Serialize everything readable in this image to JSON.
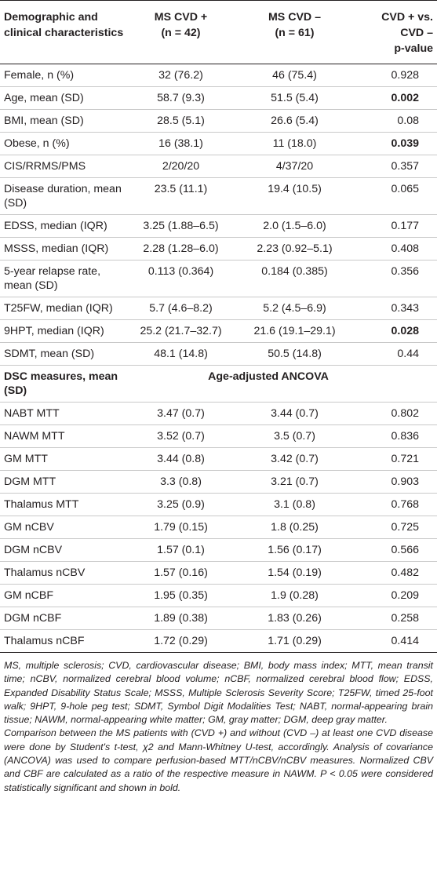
{
  "header": {
    "col1": "Demographic and clinical characteristics",
    "col2_line1": "MS CVD +",
    "col2_line2": "(n = 42)",
    "col3_line1": "MS CVD –",
    "col3_line2": "(n = 61)",
    "col4_line1": "CVD + vs.",
    "col4_line2": "CVD –",
    "col4_line3": "p-value"
  },
  "demographic_rows": [
    {
      "label": "Female, n (%)",
      "cvd_pos": "32 (76.2)",
      "cvd_neg": "46 (75.4)",
      "p": "0.928",
      "bold": false
    },
    {
      "label": "Age, mean (SD)",
      "cvd_pos": "58.7 (9.3)",
      "cvd_neg": "51.5 (5.4)",
      "p": "0.002",
      "bold": true
    },
    {
      "label": "BMI, mean (SD)",
      "cvd_pos": "28.5 (5.1)",
      "cvd_neg": "26.6 (5.4)",
      "p": "0.08",
      "bold": false
    },
    {
      "label": "Obese, n (%)",
      "cvd_pos": "16 (38.1)",
      "cvd_neg": "11 (18.0)",
      "p": "0.039",
      "bold": true
    },
    {
      "label": "CIS/RRMS/PMS",
      "cvd_pos": "2/20/20",
      "cvd_neg": "4/37/20",
      "p": "0.357",
      "bold": false
    },
    {
      "label": "Disease duration, mean (SD)",
      "cvd_pos": "23.5 (11.1)",
      "cvd_neg": "19.4 (10.5)",
      "p": "0.065",
      "bold": false
    },
    {
      "label": "EDSS, median (IQR)",
      "cvd_pos": "3.25 (1.88–6.5)",
      "cvd_neg": "2.0 (1.5–6.0)",
      "p": "0.177",
      "bold": false
    },
    {
      "label": "MSSS, median (IQR)",
      "cvd_pos": "2.28 (1.28–6.0)",
      "cvd_neg": "2.23 (0.92–5.1)",
      "p": "0.408",
      "bold": false
    },
    {
      "label": "5-year relapse rate, mean (SD)",
      "cvd_pos": "0.113 (0.364)",
      "cvd_neg": "0.184 (0.385)",
      "p": "0.356",
      "bold": false
    },
    {
      "label": "T25FW, median (IQR)",
      "cvd_pos": "5.7 (4.6–8.2)",
      "cvd_neg": "5.2 (4.5–6.9)",
      "p": "0.343",
      "bold": false
    },
    {
      "label": "9HPT, median (IQR)",
      "cvd_pos": "25.2 (21.7–32.7)",
      "cvd_neg": "21.6 (19.1–29.1)",
      "p": "0.028",
      "bold": true
    },
    {
      "label": "SDMT, mean (SD)",
      "cvd_pos": "48.1 (14.8)",
      "cvd_neg": "50.5 (14.8)",
      "p": "0.44",
      "bold": false
    }
  ],
  "dsc_section": {
    "label": "DSC measures, mean (SD)",
    "subheader": "Age-adjusted ANCOVA"
  },
  "dsc_rows": [
    {
      "label": "NABT MTT",
      "cvd_pos": "3.47 (0.7)",
      "cvd_neg": "3.44 (0.7)",
      "p": "0.802"
    },
    {
      "label": "NAWM MTT",
      "cvd_pos": "3.52 (0.7)",
      "cvd_neg": "3.5 (0.7)",
      "p": "0.836"
    },
    {
      "label": "GM MTT",
      "cvd_pos": "3.44 (0.8)",
      "cvd_neg": "3.42 (0.7)",
      "p": "0.721"
    },
    {
      "label": "DGM MTT",
      "cvd_pos": "3.3 (0.8)",
      "cvd_neg": "3.21 (0.7)",
      "p": "0.903"
    },
    {
      "label": "Thalamus MTT",
      "cvd_pos": "3.25 (0.9)",
      "cvd_neg": "3.1 (0.8)",
      "p": "0.768"
    },
    {
      "label": "GM nCBV",
      "cvd_pos": "1.79 (0.15)",
      "cvd_neg": "1.8 (0.25)",
      "p": "0.725"
    },
    {
      "label": "DGM nCBV",
      "cvd_pos": "1.57 (0.1)",
      "cvd_neg": "1.56 (0.17)",
      "p": "0.566"
    },
    {
      "label": "Thalamus nCBV",
      "cvd_pos": "1.57 (0.16)",
      "cvd_neg": "1.54 (0.19)",
      "p": "0.482"
    },
    {
      "label": "GM nCBF",
      "cvd_pos": "1.95 (0.35)",
      "cvd_neg": "1.9 (0.28)",
      "p": "0.209"
    },
    {
      "label": "DGM nCBF",
      "cvd_pos": "1.89 (0.38)",
      "cvd_neg": "1.83 (0.26)",
      "p": "0.258"
    },
    {
      "label": "Thalamus nCBF",
      "cvd_pos": "1.72 (0.29)",
      "cvd_neg": "1.71 (0.29)",
      "p": "0.414"
    }
  ],
  "footnotes": {
    "abbreviations": "MS, multiple sclerosis; CVD, cardiovascular disease; BMI, body mass index; MTT, mean transit time; nCBV, normalized cerebral blood volume; nCBF, normalized cerebral blood flow; EDSS, Expanded Disability Status Scale; MSSS, Multiple Sclerosis Severity Score; T25FW, timed 25-foot walk; 9HPT, 9-hole peg test; SDMT, Symbol Digit Modalities Test; NABT, normal-appearing brain tissue; NAWM, normal-appearing white matter; GM, gray matter; DGM, deep gray matter.",
    "comparison": "Comparison between the MS patients with (CVD +) and without (CVD –) at least one CVD disease were done by Student's t-test, χ2 and Mann-Whitney U-test, accordingly. Analysis of covariance (ANCOVA) was used to compare perfusion-based MTT/nCBV/nCBV measures. Normalized CBV and CBF are calculated as a ratio of the respective measure in NAWM. P < 0.05 were considered statistically significant and shown in bold."
  }
}
